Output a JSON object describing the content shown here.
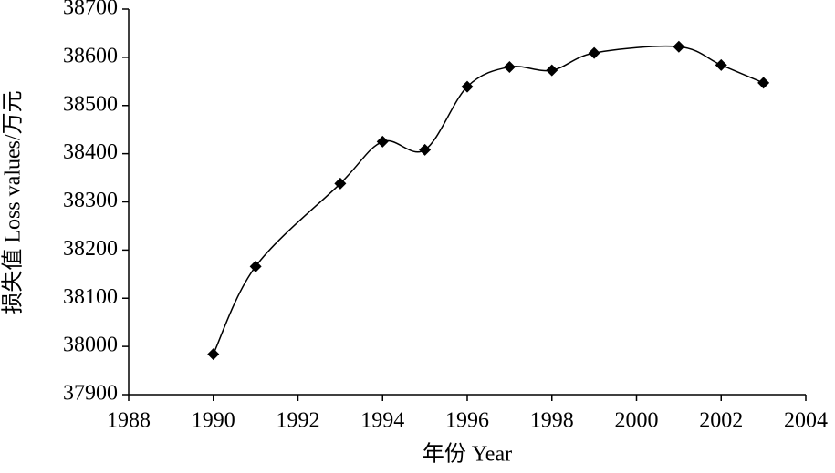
{
  "chart_data": {
    "type": "line",
    "x_label": "年份 Year",
    "y_label": "损失值 Loss values/万元",
    "x": [
      1990,
      1991,
      1993,
      1994,
      1995,
      1996,
      1997,
      1998,
      1999,
      2001,
      2002,
      2003
    ],
    "series": [
      {
        "color": "#000000",
        "values": [
          37984,
          38166,
          38338,
          38425,
          38408,
          38539,
          38580,
          38573,
          38609,
          38622,
          38584,
          38547
        ]
      }
    ],
    "xlim": [
      1988,
      2004
    ],
    "xticks": [
      1988,
      1990,
      1992,
      1994,
      1996,
      1998,
      2000,
      2002,
      2004
    ],
    "ylim": [
      37900,
      38700
    ],
    "yticks": [
      37900,
      38000,
      38100,
      38200,
      38300,
      38400,
      38500,
      38600,
      38700
    ],
    "grid": false,
    "smooth": true,
    "marker": "diamond"
  }
}
